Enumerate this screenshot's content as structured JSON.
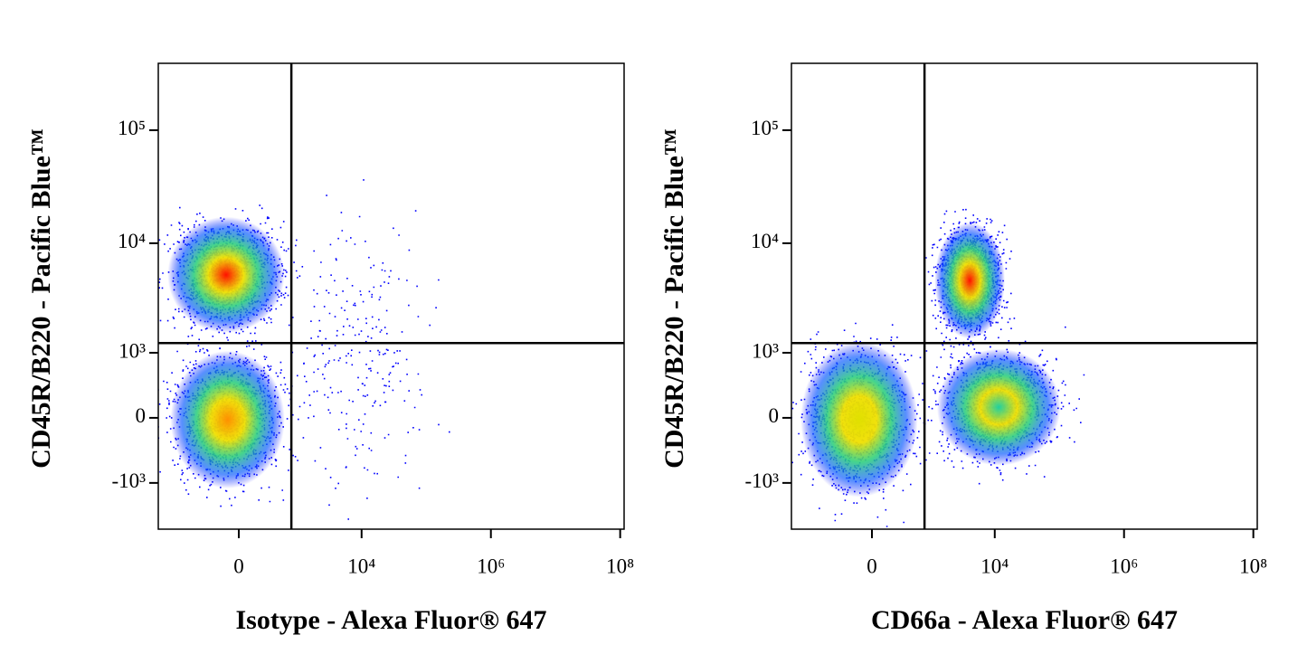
{
  "chart_data": [
    {
      "type": "density",
      "xlabel": "Isotype - Alexa Fluor® 647",
      "ylabel": "CD45R/B220 - Pacific Blue™",
      "xscale": "biexponential",
      "yscale": "biexponential",
      "xlim": [
        -2210,
        115000000
      ],
      "ylim": [
        -2730,
        390000
      ],
      "xticks": [
        0,
        {
          "value": 10000,
          "label": "10⁴"
        },
        {
          "value": 1000000,
          "label": "10⁶"
        },
        {
          "value": 100000000,
          "label": "10⁸"
        }
      ],
      "yticks": [
        {
          "value": -1000,
          "label": "-10³"
        },
        0,
        {
          "value": 1000,
          "label": "10³"
        },
        {
          "value": 10000,
          "label": "10⁴"
        },
        {
          "value": 100000,
          "label": "10⁵"
        }
      ],
      "quadrant_x": 800,
      "quadrant_y": 1250,
      "populations": [
        {
          "xrange": [
            -1900,
            750
          ],
          "yrange": [
            1400,
            19000
          ],
          "color": "#ff1000"
        },
        {
          "xrange": [
            -1700,
            750
          ],
          "yrange": [
            -1300,
            1200
          ],
          "color": "#ff9000"
        },
        {
          "xrange": [
            750,
            95000
          ],
          "yrange": [
            -1000,
            16000
          ],
          "color": "#0020ff"
        }
      ]
    },
    {
      "type": "density",
      "xlabel": "CD66a - Alexa Fluor® 647",
      "ylabel": "CD45R/B220 - Pacific Blue™",
      "xscale": "biexponential",
      "yscale": "biexponential",
      "xlim": [
        -2210,
        115000000
      ],
      "ylim": [
        -2730,
        390000
      ],
      "xticks": [
        0,
        {
          "value": 10000,
          "label": "10⁴"
        },
        {
          "value": 1000000,
          "label": "10⁶"
        },
        {
          "value": 100000000,
          "label": "10⁸"
        }
      ],
      "yticks": [
        {
          "value": -1000,
          "label": "-10³"
        },
        0,
        {
          "value": 1000,
          "label": "10³"
        },
        {
          "value": 10000,
          "label": "10⁴"
        },
        {
          "value": 100000,
          "label": "10⁵"
        }
      ],
      "quadrant_x": 800,
      "quadrant_y": 1250,
      "populations": [
        {
          "xrange": [
            -1900,
            750
          ],
          "yrange": [
            -1600,
            1500
          ],
          "color": "#e0e000"
        },
        {
          "xrange": [
            1040,
            16000
          ],
          "yrange": [
            1230,
            17000
          ],
          "color": "#ff1000"
        },
        {
          "xrange": [
            1040,
            126000
          ],
          "yrange": [
            -740,
            1230
          ],
          "color": "#20d0a0"
        }
      ]
    }
  ]
}
